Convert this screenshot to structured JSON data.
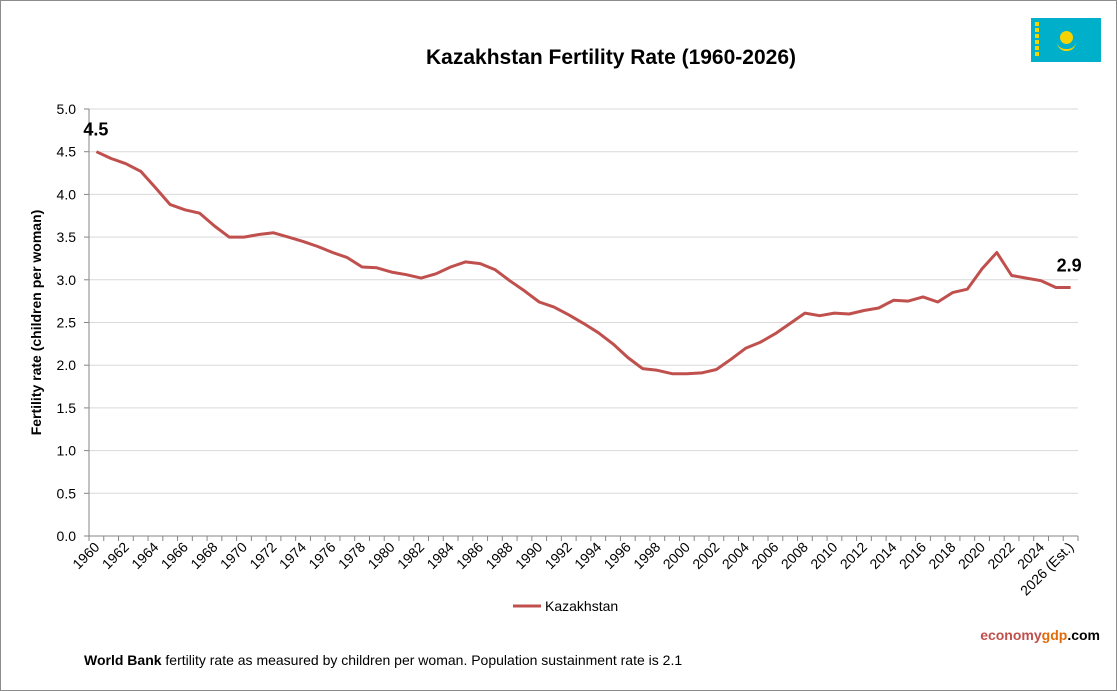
{
  "chart_data": {
    "type": "line",
    "title": "Kazakhstan Fertility Rate (1960-2026)",
    "xlabel": "",
    "ylabel": "Fertility rate (children per woman)",
    "ylim": [
      0,
      5
    ],
    "yticks": [
      "0.0",
      "0.5",
      "1.0",
      "1.5",
      "2.0",
      "2.5",
      "3.0",
      "3.5",
      "4.0",
      "4.5",
      "5.0"
    ],
    "grid": true,
    "legend_position": "bottom",
    "x": [
      1960,
      1961,
      1962,
      1963,
      1964,
      1965,
      1966,
      1967,
      1968,
      1969,
      1970,
      1971,
      1972,
      1973,
      1974,
      1975,
      1976,
      1977,
      1978,
      1979,
      1980,
      1981,
      1982,
      1983,
      1984,
      1985,
      1986,
      1987,
      1988,
      1989,
      1990,
      1991,
      1992,
      1993,
      1994,
      1995,
      1996,
      1997,
      1998,
      1999,
      2000,
      2001,
      2002,
      2003,
      2004,
      2005,
      2006,
      2007,
      2008,
      2009,
      2010,
      2011,
      2012,
      2013,
      2014,
      2015,
      2016,
      2017,
      2018,
      2019,
      2020,
      2021,
      2022,
      2023,
      2024,
      2025,
      2026
    ],
    "xtick_labels": [
      "1960",
      "1962",
      "1964",
      "1966",
      "1968",
      "1970",
      "1972",
      "1974",
      "1976",
      "1978",
      "1980",
      "1982",
      "1984",
      "1986",
      "1988",
      "1990",
      "1992",
      "1994",
      "1996",
      "1998",
      "2000",
      "2002",
      "2004",
      "2006",
      "2008",
      "2010",
      "2012",
      "2014",
      "2016",
      "2018",
      "2020",
      "2022",
      "2024",
      "2026 (Est.)"
    ],
    "series": [
      {
        "name": "Kazakhstan",
        "color": "#c0504d",
        "values": [
          4.5,
          4.42,
          4.36,
          4.27,
          4.08,
          3.88,
          3.82,
          3.78,
          3.63,
          3.5,
          3.5,
          3.53,
          3.55,
          3.5,
          3.45,
          3.39,
          3.32,
          3.26,
          3.15,
          3.14,
          3.09,
          3.06,
          3.02,
          3.07,
          3.15,
          3.21,
          3.19,
          3.12,
          2.99,
          2.87,
          2.74,
          2.68,
          2.59,
          2.49,
          2.38,
          2.25,
          2.09,
          1.96,
          1.94,
          1.9,
          1.9,
          1.91,
          1.95,
          2.07,
          2.2,
          2.27,
          2.37,
          2.49,
          2.61,
          2.58,
          2.61,
          2.6,
          2.64,
          2.67,
          2.76,
          2.75,
          2.8,
          2.74,
          2.85,
          2.89,
          3.13,
          3.32,
          3.05,
          3.02,
          2.99,
          2.91,
          2.91
        ]
      }
    ],
    "annotations": [
      {
        "label": "4.5",
        "year": 1960
      },
      {
        "label": "2.9",
        "year": 2026
      }
    ]
  },
  "footer": {
    "bold": "World Bank",
    "text": " fertility rate as measured by children per woman.  Population sustainment rate is 2.1"
  },
  "brand": {
    "part1": "economy",
    "part2": "gdp",
    "part3": ".com",
    "color1": "#c0504d",
    "color2": "#e36c0a"
  },
  "flag": {
    "icon": "kazakhstan-flag-icon",
    "color": "#00afca"
  }
}
